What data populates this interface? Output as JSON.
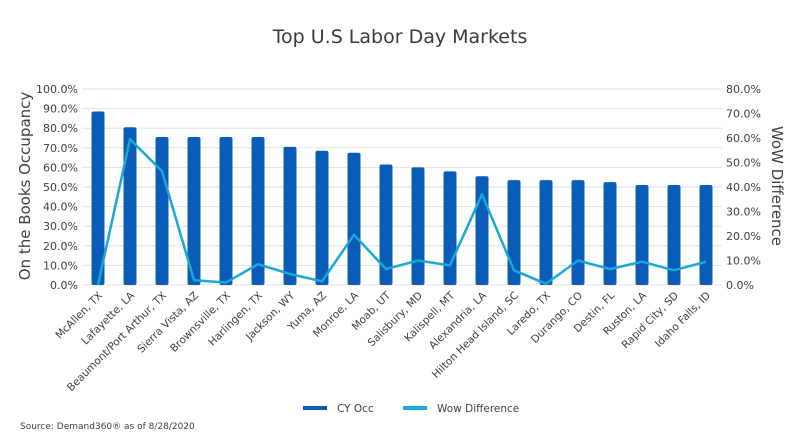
{
  "chart_data": {
    "type": "bar",
    "title": "Top U.S Labor Day Markets",
    "ylabel": "On the Books Occupancy",
    "y2label": "WoW Difference",
    "categories": [
      "McAllen, TX",
      "Lafayette, LA",
      "Beaumont/Port Arthur, TX",
      "Sierra Vista, AZ",
      "Brownsville, TX",
      "Harlingen, TX",
      "Jackson, WY",
      "Yuma, AZ",
      "Monroe, LA",
      "Moab, UT",
      "Salisbury, MD",
      "Kalispell, MT",
      "Alexandria, LA",
      "Hilton Head Island, SC",
      "Laredo, TX",
      "Durango, CO",
      "Destin, FL",
      "Ruston, LA",
      "Rapid City, SD",
      "Idaho Falls, ID"
    ],
    "series": [
      {
        "name": "CY Occ",
        "type": "bar",
        "axis": "left",
        "color": "#0a5cb8",
        "values": [
          88.5,
          80.5,
          75.5,
          75.5,
          75.5,
          75.5,
          70.5,
          68.5,
          67.5,
          61.5,
          60.0,
          58.0,
          55.5,
          53.5,
          53.5,
          53.5,
          52.5,
          51.0,
          51.0,
          51.0
        ]
      },
      {
        "name": "Wow Difference",
        "type": "line",
        "axis": "right",
        "color": "#19a9d6",
        "values": [
          0.0,
          59.5,
          46.5,
          2.0,
          1.0,
          8.5,
          4.5,
          1.5,
          20.5,
          6.5,
          10.0,
          8.0,
          37.0,
          6.0,
          0.5,
          10.0,
          6.5,
          9.5,
          6.0,
          9.5
        ]
      }
    ],
    "ylim": [
      0,
      100
    ],
    "y2lim": [
      0,
      80
    ],
    "yticks": [
      "0.0%",
      "10.0%",
      "20.0%",
      "30.0%",
      "40.0%",
      "50.0%",
      "60.0%",
      "70.0%",
      "80.0%",
      "90.0%",
      "100.0%"
    ],
    "y2ticks": [
      "0.0%",
      "10.0%",
      "20.0%",
      "30.0%",
      "40.0%",
      "50.0%",
      "60.0%",
      "70.0%",
      "80.0%"
    ],
    "grid": true,
    "legend": "bottom-center",
    "source": "Source: Demand360® as of 8/28/2020"
  }
}
